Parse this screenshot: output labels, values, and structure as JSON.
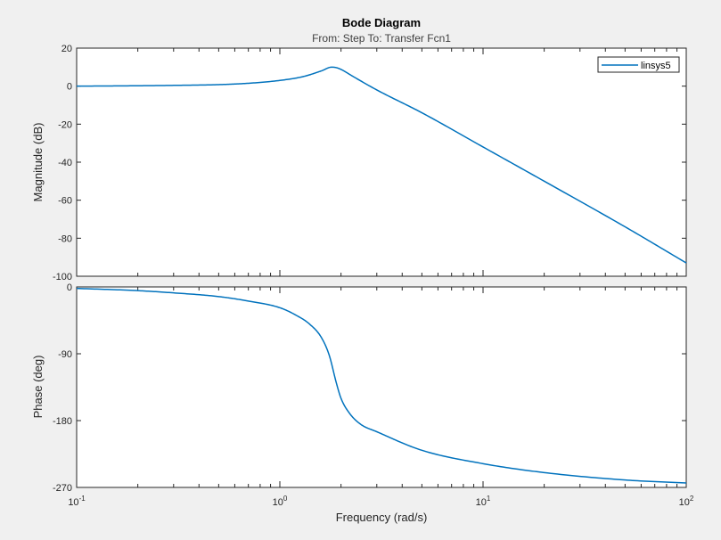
{
  "chart_data": {
    "type": "line",
    "title": "Bode Diagram",
    "subtitle": "From: Step  To: Transfer Fcn1",
    "xlabel": "Frequency  (rad/s)",
    "xscale": "log",
    "xlim": [
      0.1,
      100
    ],
    "x_tick_labels": [
      {
        "base": "10",
        "exp": "-1"
      },
      {
        "base": "10",
        "exp": "0"
      },
      {
        "base": "10",
        "exp": "1"
      },
      {
        "base": "10",
        "exp": "2"
      }
    ],
    "grid": false,
    "legend": {
      "position": "top-right",
      "entries": [
        "linsys5"
      ]
    },
    "colors": {
      "series": "#0072bd",
      "axes": "#262626",
      "background": "#f0f0f0",
      "plot_bg": "#ffffff"
    },
    "magnitude": {
      "ylabel": "Magnitude (dB)",
      "ylim": [
        -100,
        20
      ],
      "yticks": [
        "20",
        "0",
        "-20",
        "-40",
        "-60",
        "-80",
        "-100"
      ],
      "series": [
        {
          "name": "linsys5",
          "x": [
            0.1,
            0.2,
            0.3,
            0.5,
            0.7,
            1.0,
            1.3,
            1.6,
            1.8,
            1.9,
            2.0,
            2.3,
            3.0,
            5.0,
            10,
            20,
            50,
            100
          ],
          "y": [
            0,
            0.2,
            0.4,
            0.8,
            1.5,
            3.0,
            5.0,
            8.0,
            10.0,
            9.7,
            8.8,
            5.0,
            -2.0,
            -14.0,
            -32.0,
            -50.0,
            -74.0,
            -93.0
          ]
        }
      ]
    },
    "phase": {
      "ylabel": "Phase (deg)",
      "ylim": [
        -270,
        0
      ],
      "yticks": [
        "0",
        "-90",
        "-180",
        "-270"
      ],
      "series": [
        {
          "name": "linsys5",
          "x": [
            0.1,
            0.2,
            0.3,
            0.5,
            0.7,
            1.0,
            1.2,
            1.4,
            1.6,
            1.75,
            1.9,
            2.0,
            2.2,
            2.5,
            3.0,
            5.0,
            10,
            20,
            50,
            100
          ],
          "y": [
            -2,
            -5,
            -8,
            -13,
            -19,
            -28,
            -38,
            -50,
            -68,
            -92,
            -130,
            -150,
            -170,
            -185,
            -195,
            -220,
            -238,
            -250,
            -260,
            -264
          ]
        }
      ]
    }
  }
}
